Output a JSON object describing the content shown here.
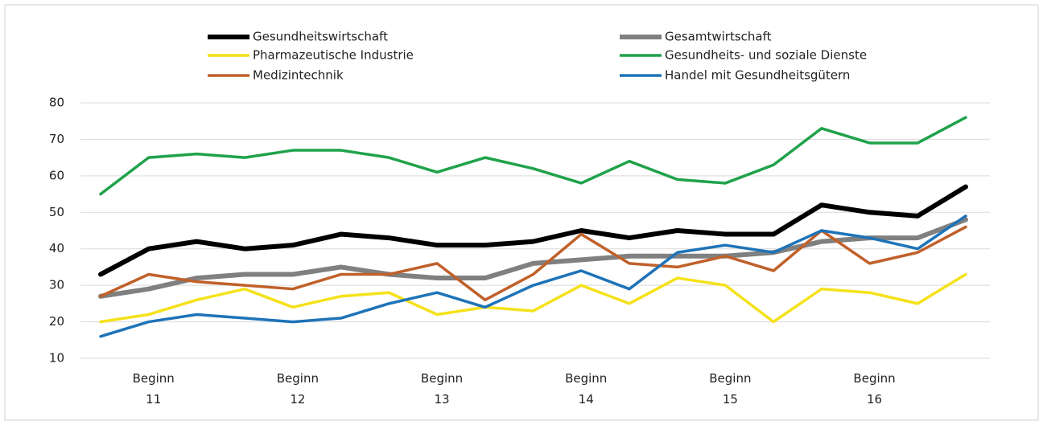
{
  "chart_data": {
    "type": "line",
    "categories": [
      null,
      "Beginn 11",
      null,
      null,
      "Beginn 12",
      null,
      null,
      "Beginn 13",
      null,
      null,
      "Beginn 14",
      null,
      null,
      "Beginn 15",
      null,
      null,
      "Beginn 16",
      null,
      null
    ],
    "series": [
      {
        "name": "Gesundheitswirtschaft",
        "color": "#000000",
        "width": 6,
        "values": [
          33,
          40,
          42,
          40,
          41,
          44,
          43,
          41,
          41,
          42,
          45,
          43,
          45,
          44,
          44,
          52,
          50,
          49,
          57
        ]
      },
      {
        "name": "Gesamtwirtschaft",
        "color": "#808080",
        "width": 6,
        "values": [
          27,
          29,
          32,
          33,
          33,
          35,
          33,
          32,
          32,
          36,
          37,
          38,
          38,
          38,
          39,
          42,
          43,
          43,
          48
        ]
      },
      {
        "name": "Pharmazeutische Industrie",
        "color": "#f5e11a",
        "width": 3.5,
        "values": [
          20,
          22,
          26,
          29,
          24,
          27,
          28,
          22,
          24,
          23,
          30,
          25,
          32,
          30,
          20,
          29,
          28,
          25,
          33
        ]
      },
      {
        "name": "Gesundheits- und soziale Dienste",
        "color": "#1fa24a",
        "width": 3.5,
        "values": [
          55,
          65,
          66,
          65,
          67,
          67,
          65,
          61,
          65,
          62,
          58,
          64,
          59,
          58,
          63,
          73,
          69,
          69,
          76
        ]
      },
      {
        "name": "Medizintechnik",
        "color": "#c0602a",
        "width": 3.5,
        "values": [
          27,
          33,
          31,
          30,
          29,
          33,
          33,
          36,
          26,
          33,
          44,
          36,
          35,
          38,
          34,
          45,
          36,
          39,
          46
        ]
      },
      {
        "name": "Handel mit Gesundheitsgütern",
        "color": "#1e73b8",
        "width": 3.5,
        "values": [
          16,
          20,
          22,
          21,
          20,
          21,
          25,
          28,
          24,
          30,
          34,
          29,
          39,
          41,
          39,
          45,
          43,
          40,
          49
        ]
      }
    ],
    "ylim": [
      10,
      80
    ],
    "yticks": [
      10,
      20,
      30,
      40,
      50,
      60,
      70,
      80
    ],
    "grid": true
  }
}
